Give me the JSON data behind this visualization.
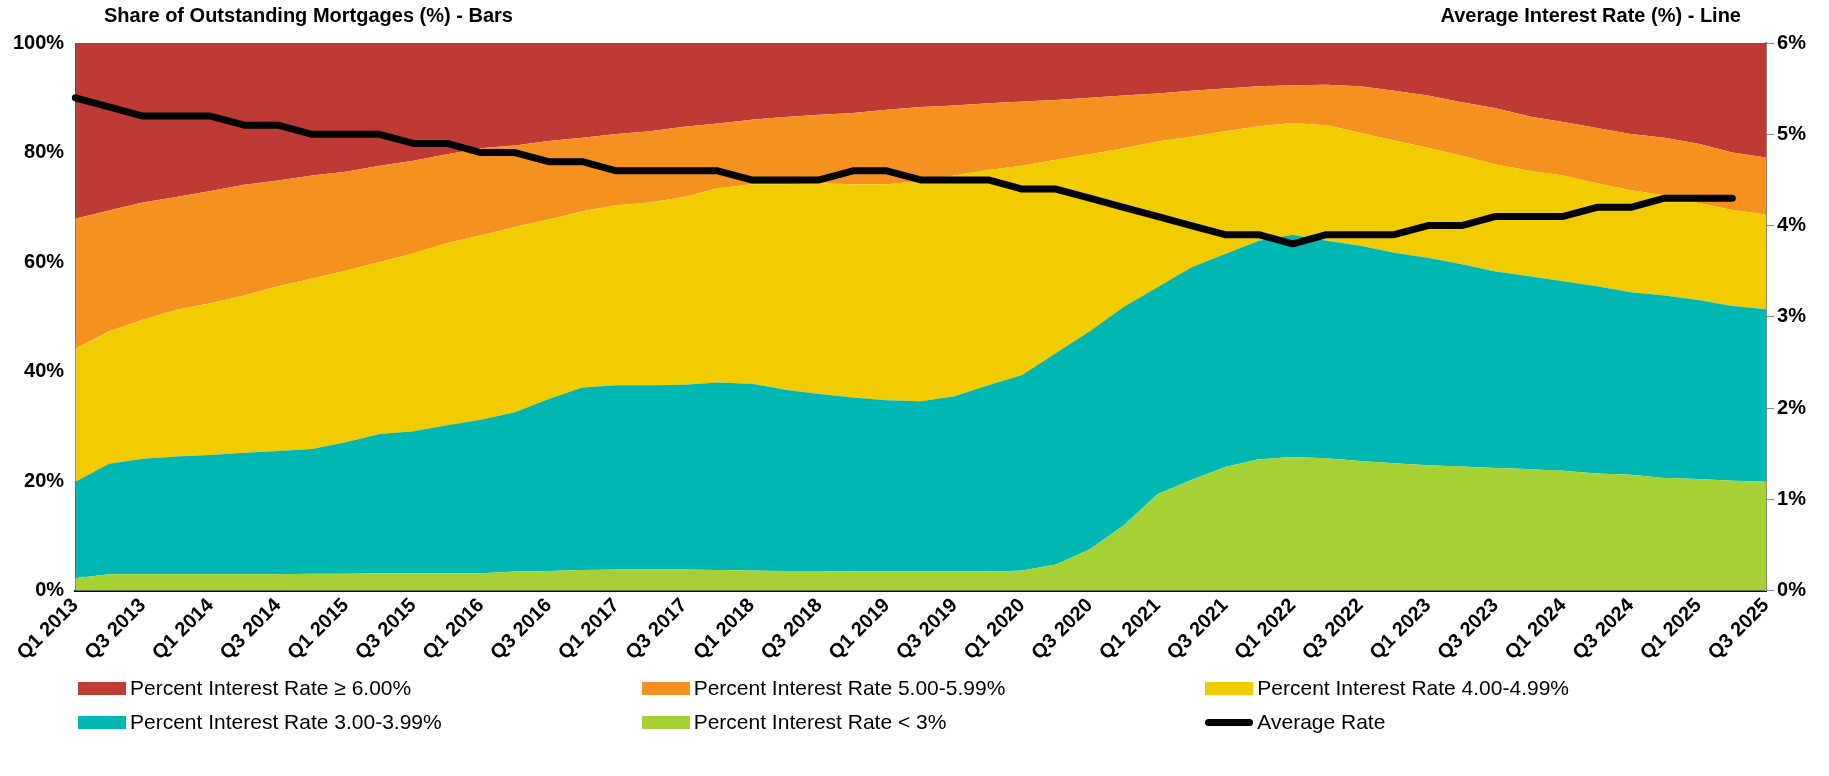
{
  "chart_data": {
    "type": "area",
    "stacked": true,
    "legend": "bottom",
    "ylabel": "Share of Outstanding Mortgages (%) - Bars",
    "y2label": "Average Interest Rate (%) - Line",
    "categories": [
      "Q1 2013",
      null,
      "Q3 2013",
      null,
      "Q1 2014",
      null,
      "Q3 2014",
      null,
      "Q1 2015",
      null,
      "Q3 2015",
      null,
      "Q1 2016",
      null,
      "Q3 2016",
      null,
      "Q1 2017",
      null,
      "Q3 2017",
      null,
      "Q1 2018",
      null,
      "Q3 2018",
      null,
      "Q1 2019",
      null,
      "Q3 2019",
      null,
      "Q1 2020",
      null,
      "Q3 2020",
      null,
      "Q1 2021",
      null,
      "Q3 2021",
      null,
      "Q1 2022",
      null,
      "Q3 2022",
      null,
      "Q1 2023",
      null,
      "Q3 2023",
      null,
      "Q1 2024",
      null,
      "Q3 2024",
      null,
      "Q1 2025",
      null,
      "Q3 2025"
    ],
    "ylim": [
      0,
      100
    ],
    "yticks": [
      {
        "value": 0,
        "label": "0%"
      },
      {
        "value": 20,
        "label": "20%"
      },
      {
        "value": 40,
        "label": "40%"
      },
      {
        "value": 60,
        "label": "60%"
      },
      {
        "value": 80,
        "label": "80%"
      },
      {
        "value": 100,
        "label": "100%"
      }
    ],
    "y2lim": [
      0,
      6
    ],
    "y2ticks": [
      {
        "value": 0,
        "label": "0%"
      },
      {
        "value": 1,
        "label": "1%"
      },
      {
        "value": 2,
        "label": "2%"
      },
      {
        "value": 3,
        "label": "3%"
      },
      {
        "value": 4,
        "label": "4%"
      },
      {
        "value": 5,
        "label": "5%"
      },
      {
        "value": 6,
        "label": "6%"
      }
    ],
    "series": [
      {
        "name": "Percent Interest Rate < 3%",
        "color": "#a6d135",
        "values": [
          2.3,
          3.0,
          3.0,
          3.0,
          3.0,
          3.0,
          3.0,
          3.1,
          3.1,
          3.2,
          3.2,
          3.2,
          3.2,
          3.5,
          3.6,
          3.8,
          3.9,
          3.9,
          3.9,
          3.8,
          3.7,
          3.6,
          3.6,
          3.5,
          3.5,
          3.5,
          3.5,
          3.5,
          3.7,
          4.8,
          7.6,
          11.9,
          17.6,
          20.2,
          22.6,
          24.0,
          24.4,
          24.2,
          23.7,
          23.3,
          22.9,
          22.7,
          22.4,
          22.2,
          21.9,
          21.4,
          21.2,
          20.6,
          20.4,
          20.1,
          19.9
        ]
      },
      {
        "name": "Percent Interest Rate 3.00-3.99%",
        "color": "#00b8b3",
        "values": [
          17.6,
          20.2,
          21.1,
          21.5,
          21.8,
          22.2,
          22.5,
          22.8,
          24.0,
          25.4,
          25.9,
          27.0,
          28.0,
          29.1,
          31.4,
          33.3,
          33.6,
          33.6,
          33.7,
          34.2,
          34.1,
          33.1,
          32.3,
          31.8,
          31.3,
          31.1,
          32.0,
          34.0,
          35.7,
          38.6,
          39.8,
          39.9,
          37.8,
          38.8,
          38.9,
          39.9,
          40.6,
          39.7,
          39.3,
          38.4,
          37.9,
          36.9,
          35.9,
          35.2,
          34.6,
          34.2,
          33.3,
          33.3,
          32.7,
          31.9,
          31.5
        ]
      },
      {
        "name": "Percent Interest Rate 4.00-4.99%",
        "color": "#f0cc00",
        "values": [
          24.3,
          24.2,
          25.4,
          26.8,
          27.7,
          28.7,
          30.1,
          31.1,
          31.3,
          31.4,
          32.5,
          33.3,
          33.7,
          33.8,
          32.8,
          32.2,
          32.9,
          33.4,
          34.3,
          35.5,
          36.4,
          37.5,
          38.5,
          38.9,
          39.4,
          40.2,
          40.3,
          39.3,
          38.2,
          35.3,
          32.3,
          29.0,
          26.6,
          23.9,
          22.4,
          20.9,
          20.4,
          21.1,
          20.6,
          20.5,
          20.1,
          19.8,
          19.5,
          19.3,
          19.3,
          18.8,
          18.6,
          18.3,
          17.7,
          17.5,
          17.3
        ]
      },
      {
        "name": "Percent Interest Rate 5.00-5.99%",
        "color": "#f59120",
        "values": [
          23.7,
          22.0,
          21.4,
          20.6,
          20.5,
          20.2,
          19.3,
          18.8,
          18.1,
          17.6,
          16.9,
          16.2,
          15.9,
          14.9,
          14.3,
          13.4,
          13.0,
          13.0,
          12.8,
          11.8,
          11.8,
          12.3,
          12.5,
          13.0,
          13.6,
          13.5,
          12.8,
          12.2,
          11.7,
          10.9,
          10.3,
          9.6,
          8.8,
          8.4,
          7.8,
          7.3,
          6.9,
          7.4,
          8.5,
          9.1,
          9.5,
          9.8,
          10.3,
          9.9,
          9.8,
          10.1,
          10.3,
          10.5,
          10.8,
          10.5,
          10.4
        ]
      },
      {
        "name": "Percent Interest Rate ≥ 6.00%",
        "color": "#be3a34",
        "values": [
          32.1,
          30.6,
          29.1,
          28.1,
          27.0,
          25.9,
          25.1,
          24.2,
          23.5,
          22.4,
          21.5,
          20.3,
          19.2,
          18.7,
          17.9,
          17.3,
          16.6,
          16.1,
          15.3,
          14.7,
          14.0,
          13.5,
          13.1,
          12.8,
          12.2,
          11.7,
          11.4,
          11.0,
          10.7,
          10.4,
          10.0,
          9.6,
          9.2,
          8.7,
          8.3,
          7.9,
          7.7,
          7.6,
          7.9,
          8.7,
          9.6,
          10.8,
          11.9,
          13.4,
          14.4,
          15.5,
          16.6,
          17.3,
          18.4,
          20.0,
          20.9
        ]
      },
      {
        "name": "Average Rate",
        "type": "line",
        "axis": "y2",
        "color": "#000000",
        "values": [
          5.4,
          5.3,
          5.2,
          5.2,
          5.2,
          5.1,
          5.1,
          5.0,
          5.0,
          5.0,
          4.9,
          4.9,
          4.8,
          4.8,
          4.7,
          4.7,
          4.6,
          4.6,
          4.6,
          4.6,
          4.5,
          4.5,
          4.5,
          4.6,
          4.6,
          4.5,
          4.5,
          4.5,
          4.4,
          4.4,
          4.3,
          4.2,
          4.1,
          4.0,
          3.9,
          3.9,
          3.8,
          3.9,
          3.9,
          3.9,
          4.0,
          4.0,
          4.1,
          4.1,
          4.1,
          4.2,
          4.2,
          4.3,
          4.3,
          4.3,
          null
        ]
      }
    ]
  }
}
